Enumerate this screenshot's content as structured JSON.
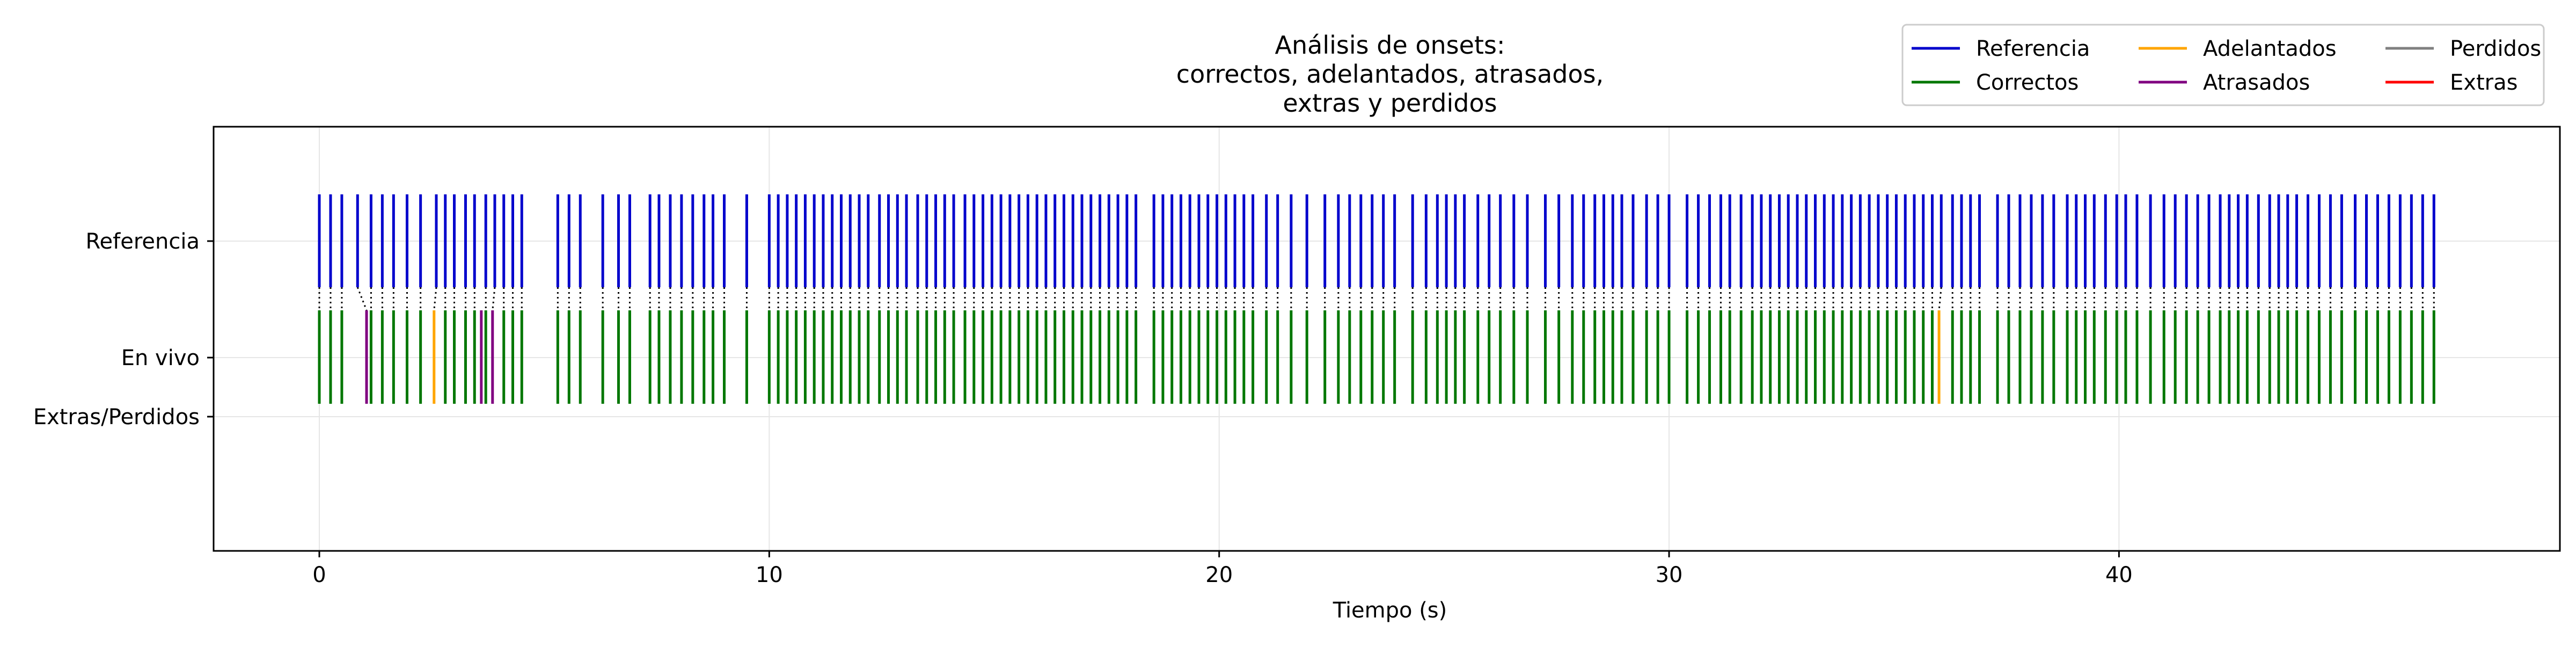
{
  "chart_data": {
    "type": "event-raster",
    "title_lines": [
      "Análisis de onsets:",
      "correctos, adelantados, atrasados,",
      "extras y perdidos"
    ],
    "xlabel": "Tiempo (s)",
    "ylabel": "",
    "xlim": [
      -2.35,
      49.8
    ],
    "x_ticks": [
      0,
      10,
      20,
      30,
      40
    ],
    "x_tick_labels": [
      "0",
      "10",
      "20",
      "30",
      "40"
    ],
    "y_tick_labels": [
      "Referencia",
      "En vivo",
      "Extras/Perdidos"
    ],
    "grid": true,
    "legend": {
      "placement": "top-right",
      "entries": [
        {
          "label": "Referencia",
          "color": "#0000cc"
        },
        {
          "label": "Correctos",
          "color": "#007700"
        },
        {
          "label": "Adelantados",
          "color": "#ffa500"
        },
        {
          "label": "Atrasados",
          "color": "#800080"
        },
        {
          "label": "Perdidos",
          "color": "#808080"
        },
        {
          "label": "Extras",
          "color": "#ff0000"
        }
      ]
    },
    "reference_onsets": [
      0.0,
      0.25,
      0.5,
      0.85,
      1.15,
      1.4,
      1.65,
      1.95,
      2.25,
      2.6,
      2.8,
      3.0,
      3.25,
      3.45,
      3.7,
      3.9,
      4.1,
      4.3,
      4.5,
      5.3,
      5.55,
      5.8,
      6.3,
      6.65,
      6.9,
      7.35,
      7.55,
      7.8,
      8.05,
      8.3,
      8.55,
      8.75,
      9.0,
      9.5,
      10.0,
      10.2,
      10.4,
      10.6,
      10.8,
      11.0,
      11.2,
      11.4,
      11.6,
      11.8,
      12.0,
      12.2,
      12.45,
      12.65,
      12.85,
      13.05,
      13.3,
      13.5,
      13.7,
      13.9,
      14.1,
      14.35,
      14.55,
      14.75,
      14.95,
      15.15,
      15.35,
      15.55,
      15.75,
      15.95,
      16.15,
      16.35,
      16.55,
      16.75,
      16.95,
      17.15,
      17.35,
      17.55,
      17.75,
      17.95,
      18.15,
      18.55,
      18.75,
      18.95,
      19.15,
      19.35,
      19.55,
      19.75,
      19.95,
      20.15,
      20.35,
      20.55,
      20.75,
      21.05,
      21.3,
      21.6,
      21.95,
      22.35,
      22.65,
      22.9,
      23.15,
      23.4,
      23.65,
      23.9,
      24.3,
      24.6,
      24.85,
      25.05,
      25.25,
      25.45,
      25.75,
      26.0,
      26.25,
      26.55,
      26.85,
      27.25,
      27.55,
      27.85,
      28.1,
      28.35,
      28.55,
      28.75,
      28.95,
      29.2,
      29.5,
      29.75,
      30.0,
      30.4,
      30.65,
      30.9,
      31.15,
      31.35,
      31.6,
      31.85,
      32.05,
      32.25,
      32.45,
      32.65,
      32.85,
      33.05,
      33.25,
      33.45,
      33.65,
      33.85,
      34.05,
      34.25,
      34.45,
      34.65,
      34.85,
      35.05,
      35.25,
      35.45,
      35.65,
      35.85,
      36.05,
      36.3,
      36.5,
      36.7,
      36.9,
      37.3,
      37.55,
      37.8,
      38.05,
      38.3,
      38.55,
      38.85,
      39.05,
      39.25,
      39.45,
      39.7,
      39.95,
      40.15,
      40.4,
      40.7,
      41.0,
      41.25,
      41.5,
      41.75,
      42.0,
      42.25,
      42.45,
      42.65,
      42.85,
      43.1,
      43.35,
      43.55,
      43.75,
      43.95,
      44.2,
      44.45,
      44.7,
      44.95,
      45.25,
      45.5,
      45.75,
      46.0,
      46.25,
      46.5,
      46.75,
      47.0
    ],
    "live_onsets": {
      "correctos": [
        0.0,
        0.25,
        0.5,
        1.15,
        1.4,
        1.65,
        1.95,
        2.25,
        2.8,
        3.0,
        3.25,
        3.45,
        3.7,
        4.1,
        4.3,
        4.5,
        5.3,
        5.55,
        5.8,
        6.3,
        6.65,
        6.9,
        7.35,
        7.55,
        7.8,
        8.05,
        8.3,
        8.55,
        8.75,
        9.0,
        9.5,
        10.0,
        10.2,
        10.4,
        10.6,
        10.8,
        11.0,
        11.2,
        11.4,
        11.6,
        11.8,
        12.0,
        12.2,
        12.45,
        12.65,
        12.85,
        13.05,
        13.3,
        13.5,
        13.7,
        13.9,
        14.1,
        14.35,
        14.55,
        14.75,
        14.95,
        15.15,
        15.35,
        15.55,
        15.75,
        15.95,
        16.15,
        16.35,
        16.55,
        16.75,
        16.95,
        17.15,
        17.35,
        17.55,
        17.75,
        17.95,
        18.15,
        18.55,
        18.75,
        18.95,
        19.15,
        19.35,
        19.55,
        19.75,
        19.95,
        20.15,
        20.35,
        20.55,
        20.75,
        21.05,
        21.3,
        21.6,
        21.95,
        22.35,
        22.65,
        22.9,
        23.15,
        23.4,
        23.65,
        23.9,
        24.3,
        24.6,
        24.85,
        25.05,
        25.25,
        25.45,
        25.75,
        26.0,
        26.25,
        26.55,
        26.85,
        27.25,
        27.55,
        27.85,
        28.1,
        28.35,
        28.55,
        28.75,
        28.95,
        29.2,
        29.5,
        29.75,
        30.0,
        30.4,
        30.65,
        30.9,
        31.15,
        31.35,
        31.6,
        31.85,
        32.05,
        32.25,
        32.45,
        32.65,
        32.85,
        33.05,
        33.25,
        33.45,
        33.65,
        33.85,
        34.05,
        34.25,
        34.45,
        34.65,
        34.85,
        35.05,
        35.25,
        35.45,
        35.65,
        35.85,
        36.3,
        36.5,
        36.7,
        36.9,
        37.3,
        37.55,
        37.8,
        38.05,
        38.3,
        38.55,
        38.85,
        39.05,
        39.25,
        39.45,
        39.7,
        39.95,
        40.15,
        40.4,
        40.7,
        41.0,
        41.25,
        41.5,
        41.75,
        42.0,
        42.25,
        42.45,
        42.65,
        42.85,
        43.1,
        43.35,
        43.55,
        43.75,
        43.95,
        44.2,
        44.45,
        44.7,
        44.95,
        45.25,
        45.5,
        45.75,
        46.0,
        46.25,
        46.5,
        46.75,
        47.0
      ],
      "adelantados": [
        2.55,
        36.0
      ],
      "atrasados": [
        1.05,
        3.6,
        3.85
      ],
      "extras": [],
      "perdidos": []
    }
  }
}
